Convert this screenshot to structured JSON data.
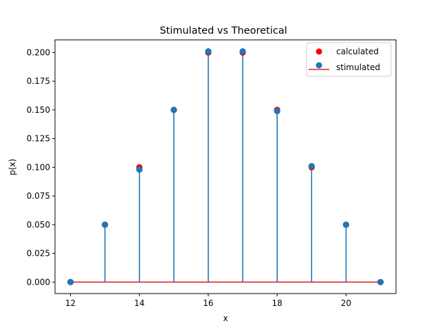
{
  "chart_data": {
    "type": "scatter",
    "title": "Stimulated vs Theoretical",
    "xlabel": "x",
    "ylabel": "p(x)",
    "xlim": [
      11.55,
      21.45
    ],
    "ylim": [
      -0.01,
      0.211
    ],
    "x_ticks": [
      12,
      14,
      16,
      18,
      20
    ],
    "x_tick_labels": [
      "12",
      "14",
      "16",
      "18",
      "20"
    ],
    "y_ticks": [
      0.0,
      0.025,
      0.05,
      0.075,
      0.1,
      0.125,
      0.15,
      0.175,
      0.2
    ],
    "y_tick_labels": [
      "0.000",
      "0.025",
      "0.050",
      "0.075",
      "0.100",
      "0.125",
      "0.150",
      "0.175",
      "0.200"
    ],
    "grid": false,
    "legend_position": "top-right",
    "x": [
      12,
      13,
      14,
      15,
      16,
      17,
      18,
      19,
      20,
      21
    ],
    "series": [
      {
        "name": "calculated",
        "kind": "scatter",
        "color": "#ff0000",
        "values": [
          0.0,
          0.05,
          0.1,
          0.15,
          0.2,
          0.2,
          0.15,
          0.1,
          0.05,
          0.0
        ]
      },
      {
        "name": "stimulated",
        "kind": "stem",
        "color": "#1f77b4",
        "baseline_color": "#d62728",
        "values": [
          0.0,
          0.05,
          0.098,
          0.15,
          0.201,
          0.201,
          0.149,
          0.101,
          0.05,
          0.0
        ]
      }
    ]
  }
}
